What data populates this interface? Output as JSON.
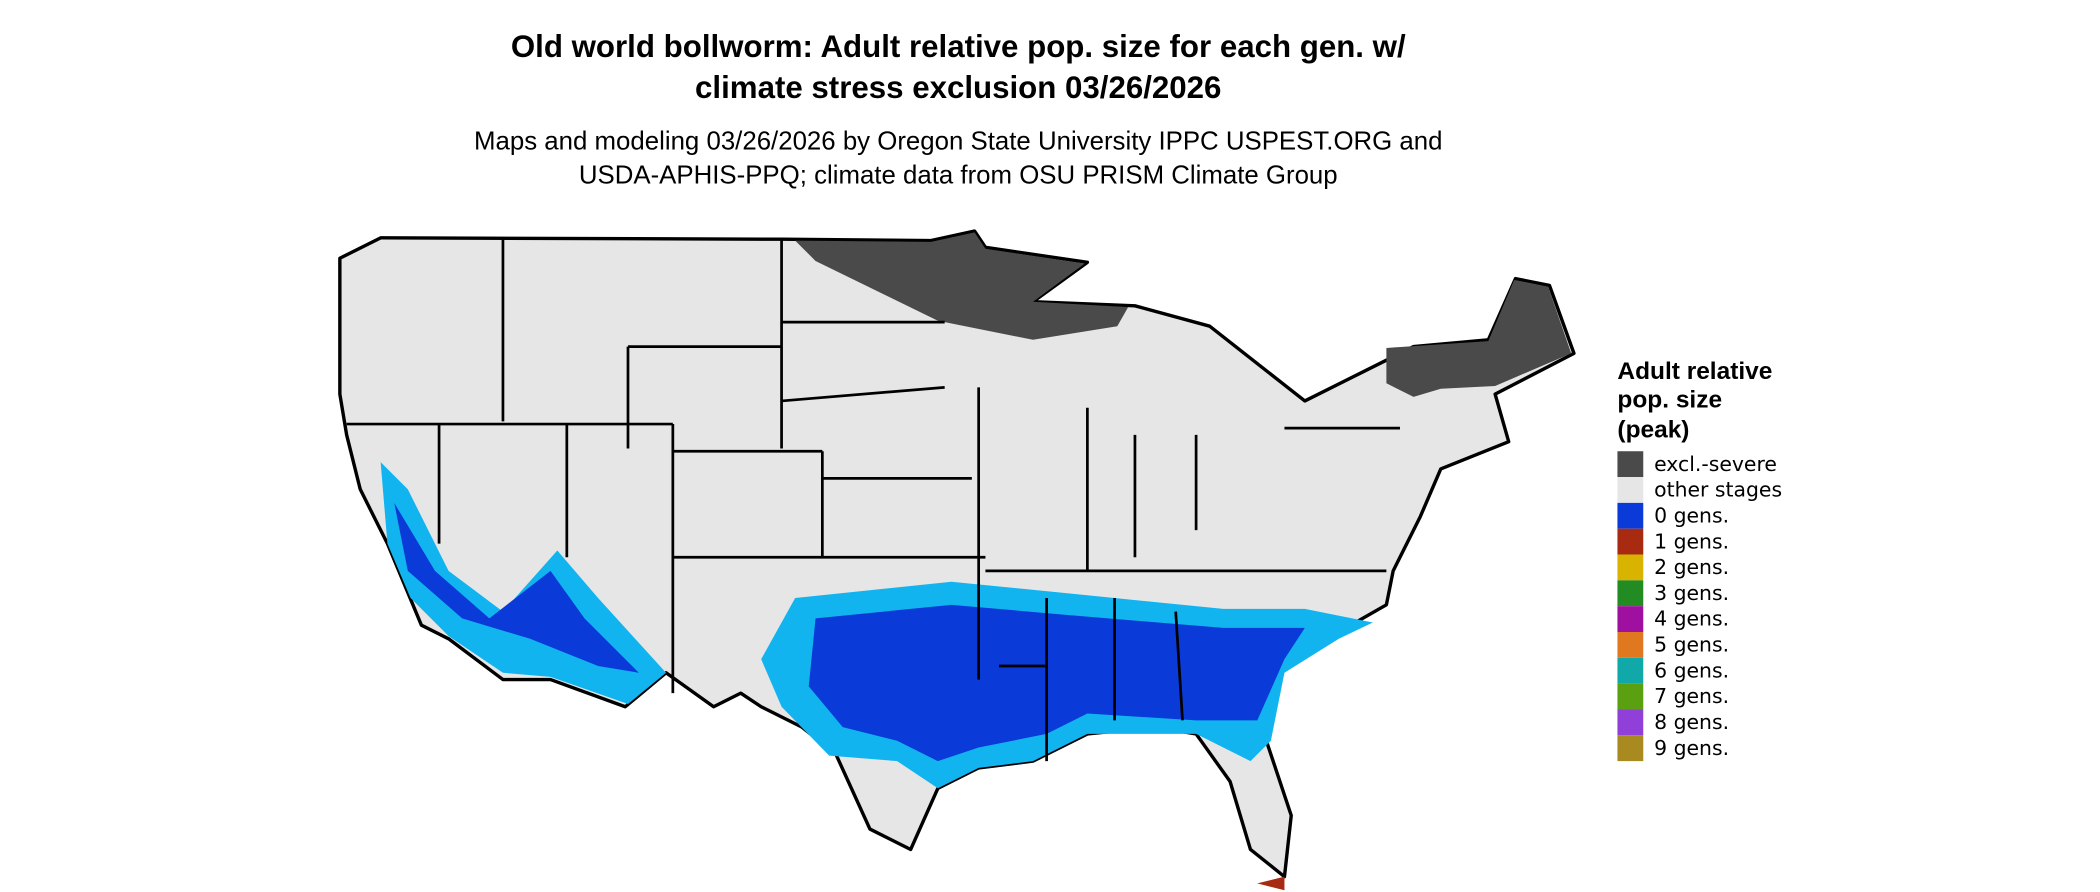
{
  "title_lines": [
    "Old world bollworm: Adult relative pop. size for each gen. w/",
    "climate stress exclusion 03/26/2026"
  ],
  "subtitle_lines": [
    "Maps and modeling 03/26/2026 by Oregon State University IPPC USPEST.ORG and",
    "USDA-APHIS-PPQ; climate data from OSU PRISM Climate Group"
  ],
  "legend": {
    "title_lines": [
      "Adult relative",
      "pop. size",
      "(peak)"
    ],
    "items": [
      {
        "label": "excl.-severe",
        "color": "#4a4a4a"
      },
      {
        "label": "other stages",
        "color": "#e6e6e6"
      },
      {
        "label": "0 gens.",
        "color": "#0a3ad8"
      },
      {
        "label": "1 gens.",
        "color": "#a82a10"
      },
      {
        "label": "2 gens.",
        "color": "#d8b400"
      },
      {
        "label": "3 gens.",
        "color": "#228b22"
      },
      {
        "label": "4 gens.",
        "color": "#a010a0"
      },
      {
        "label": "5 gens.",
        "color": "#e07820"
      },
      {
        "label": "6 gens.",
        "color": "#10a8a8"
      },
      {
        "label": "7 gens.",
        "color": "#5aa010"
      },
      {
        "label": "8 gens.",
        "color": "#9040d8"
      },
      {
        "label": "9 gens.",
        "color": "#a88a20"
      }
    ]
  }
}
